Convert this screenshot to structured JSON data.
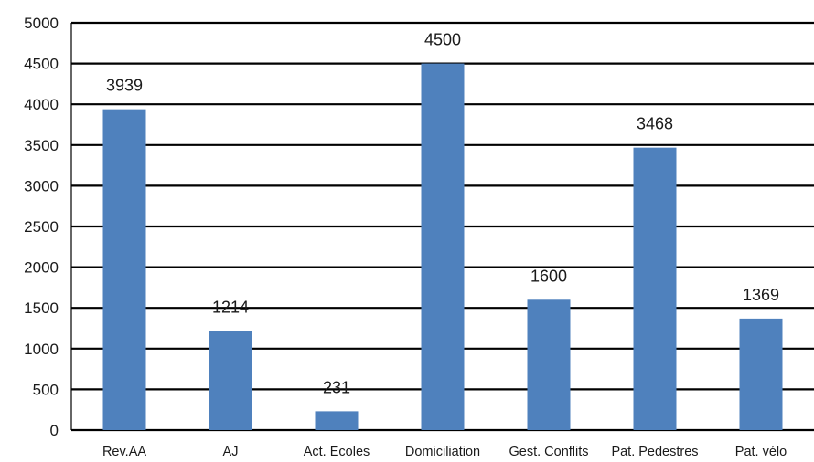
{
  "chart_data": {
    "type": "bar",
    "categories": [
      "Rev.AA",
      "AJ",
      "Act. Ecoles",
      "Domiciliation",
      "Gest. Conflits",
      "Pat. Pedestres",
      "Pat. vélo"
    ],
    "values": [
      3939,
      1214,
      231,
      4500,
      1600,
      3468,
      1369
    ],
    "data_labels": [
      "3939",
      "1214",
      "231",
      "4500",
      "1600",
      "3468",
      "1369"
    ],
    "yticks": [
      0,
      500,
      1000,
      1500,
      2000,
      2500,
      3000,
      3500,
      4000,
      4500,
      5000
    ],
    "ylim": [
      0,
      5000
    ],
    "grid": true,
    "legend": "none",
    "bar_color": "#4f81bd",
    "title": "",
    "xlabel": "",
    "ylabel": ""
  }
}
